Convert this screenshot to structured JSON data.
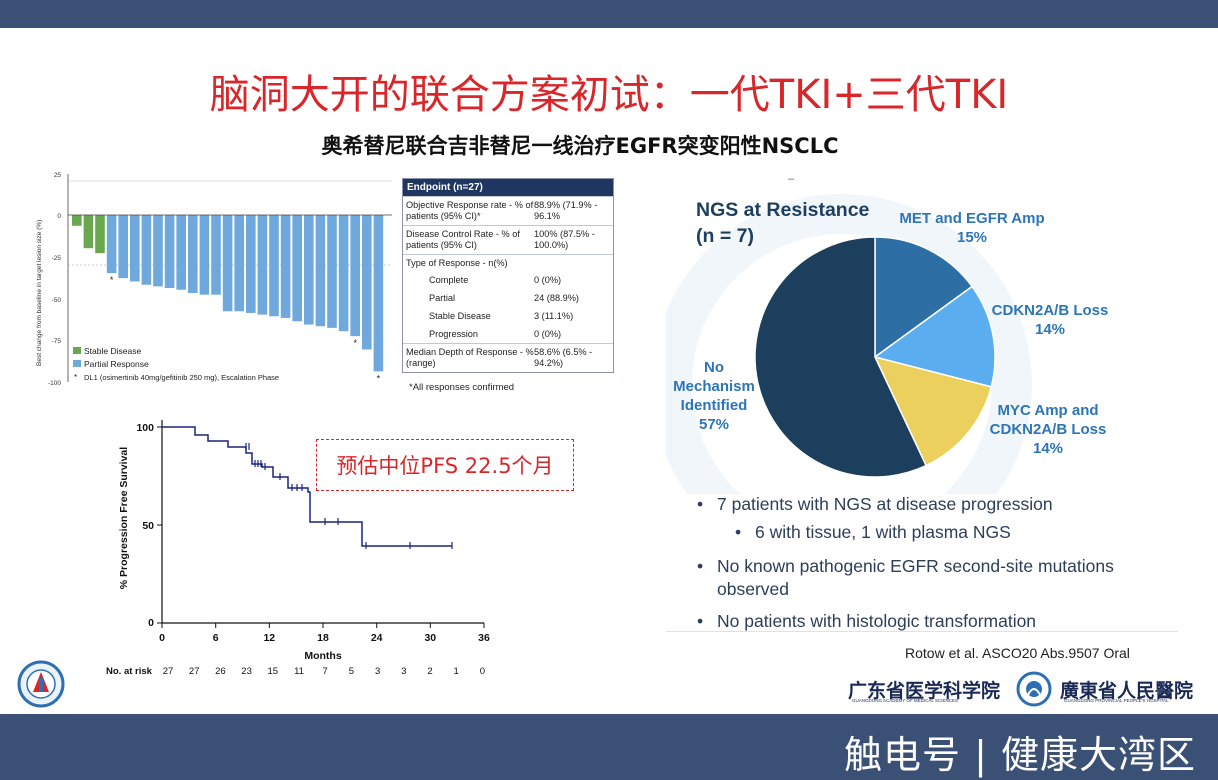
{
  "slide": {
    "title": "脑洞大开的联合方案初试：一代TKI+三代TKI",
    "subtitle": "奥希替尼联合吉非替尼一线治疗EGFR突变阳性NSCLC",
    "citation": "Rotow et al. ASCO20 Abs.9507 Oral",
    "footer": "触电号 | 健康大湾区",
    "institutions": {
      "left": "广东省医学科学院",
      "left_en": "GUANGDONG ACADEMY OF MEDICAL SCIENCES",
      "right": "廣東省人民醫院",
      "right_en": "GUANGDONG PROVINCIAL PEOPLE'S HOSPITAL"
    }
  },
  "waterfall": {
    "ylabel": "Best change from baseline in target lesion size (%)",
    "yticks": [
      "25",
      "0",
      "-25",
      "-50",
      "-75",
      "-100"
    ],
    "legend": {
      "stable": "Stable Disease",
      "partial": "Partial Response",
      "note_marker": "*",
      "note": "DL1 (osimertinib 40mg/gefitinib 250 mg), Escalation Phase"
    },
    "colors": {
      "stable": "#6aa84f",
      "partial": "#6fa8dc"
    }
  },
  "endpoint_table": {
    "header": "Endpoint (n=27)",
    "orr_label": "Objective Response rate - % of patients (95% CI)*",
    "orr_value": "88.9% (71.9% - 96.1%",
    "dcr_label": "Disease Control Rate - % of patients (95% CI)",
    "dcr_value": "100% (87.5% - 100.0%)",
    "type_label": "Type of Response - n(%)",
    "complete_label": "Complete",
    "complete_value": "0 (0%)",
    "partial_label": "Partial",
    "partial_value": "24 (88.9%)",
    "stable_label": "Stable Disease",
    "stable_value": "3 (11.1%)",
    "progression_label": "Progression",
    "progression_value": "0 (0%)",
    "depth_label": "Median Depth of Response - % (range)",
    "depth_value": "58.6% (6.5% - 94.2%)",
    "footnote": "*All responses confirmed"
  },
  "km": {
    "ylabel": "% Progression Free Survival",
    "xlabel": "Months",
    "yticks": [
      "100",
      "50",
      "0"
    ],
    "xticks": [
      "0",
      "6",
      "12",
      "18",
      "24",
      "30",
      "36"
    ],
    "at_risk_label": "No. at risk",
    "at_risk": [
      "27",
      "27",
      "26",
      "23",
      "15",
      "11",
      "7",
      "5",
      "3",
      "3",
      "2",
      "1",
      "0"
    ],
    "annotation": "预估中位PFS 22.5个月"
  },
  "ngs": {
    "title_line1": "NGS at Resistance",
    "title_line2": "(n = 7)",
    "dash": "–",
    "slices": [
      {
        "label_line1": "MET and EGFR Amp",
        "label_line2": "15%",
        "value": 15,
        "color": "#2d6ea4"
      },
      {
        "label_line1": "CDKN2A/B Loss",
        "label_line2": "14%",
        "value": 14,
        "color": "#5aaef0"
      },
      {
        "label_line1": "MYC Amp and",
        "label_line2": "CDKN2A/B Loss",
        "label_line3": "14%",
        "value": 14,
        "color": "#ecd05e"
      },
      {
        "label_line1": "No",
        "label_line2": "Mechanism",
        "label_line3": "Identified",
        "label_line4": "57%",
        "value": 57,
        "color": "#1c3f5e"
      }
    ],
    "label_color": "#2e75b6",
    "bullets": {
      "b1": "7 patients with NGS at disease progression",
      "b1_sub": "6 with tissue, 1 with plasma NGS",
      "b2_line1": "No known pathogenic EGFR second-site mutations",
      "b2_line2": "observed",
      "b3": "No patients with histologic transformation"
    }
  }
}
